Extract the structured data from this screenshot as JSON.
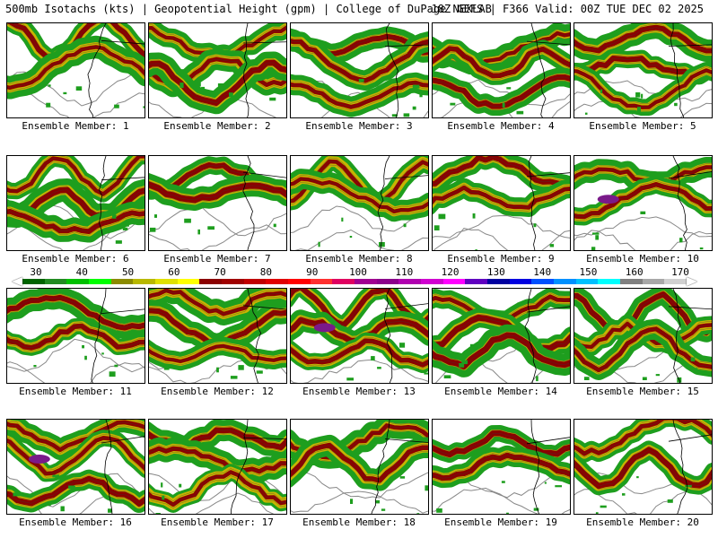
{
  "header": {
    "left": "500mb Isotachs (kts) | Geopotential Height (gpm) | College of DuPage NEXLAB",
    "right": "18Z GEFS | F366 Valid: 00Z TUE DEC 02 2025"
  },
  "panels": [
    {
      "label": "Ensemble Member: 1"
    },
    {
      "label": "Ensemble Member: 2"
    },
    {
      "label": "Ensemble Member: 3"
    },
    {
      "label": "Ensemble Member: 4"
    },
    {
      "label": "Ensemble Member: 5"
    },
    {
      "label": "Ensemble Member: 6"
    },
    {
      "label": "Ensemble Member: 7"
    },
    {
      "label": "Ensemble Member: 8"
    },
    {
      "label": "Ensemble Member: 9"
    },
    {
      "label": "Ensemble Member: 10"
    },
    {
      "label": "Ensemble Member: 11"
    },
    {
      "label": "Ensemble Member: 12"
    },
    {
      "label": "Ensemble Member: 13"
    },
    {
      "label": "Ensemble Member: 14"
    },
    {
      "label": "Ensemble Member: 15"
    },
    {
      "label": "Ensemble Member: 16"
    },
    {
      "label": "Ensemble Member: 17"
    },
    {
      "label": "Ensemble Member: 18"
    },
    {
      "label": "Ensemble Member: 19"
    },
    {
      "label": "Ensemble Member: 20"
    }
  ],
  "colorbar": {
    "ticks": [
      "30",
      "40",
      "50",
      "60",
      "70",
      "80",
      "90",
      "100",
      "110",
      "120",
      "130",
      "140",
      "150",
      "160",
      "170"
    ],
    "colors": [
      "#006400",
      "#228b22",
      "#00c000",
      "#00ff00",
      "#8b8b00",
      "#b8b800",
      "#e0e000",
      "#ffff00",
      "#8b0000",
      "#a00000",
      "#c00000",
      "#e00000",
      "#ff0000",
      "#ff3030",
      "#e00060",
      "#a00090",
      "#8b008b",
      "#b000b0",
      "#d000d0",
      "#ff00ff",
      "#6000c0",
      "#0000a0",
      "#0000e0",
      "#0050ff",
      "#0090ff",
      "#00c0ff",
      "#00ffff",
      "#808080",
      "#a8a8a8",
      "#d0d0d0"
    ]
  },
  "colors": {
    "jet_weak": "#1e9e1e",
    "jet_mid": "#c8b400",
    "jet_strong": "#8b0000",
    "jet_max": "#7a1a8a",
    "height_contour": "#888888",
    "coastline": "#000000"
  }
}
